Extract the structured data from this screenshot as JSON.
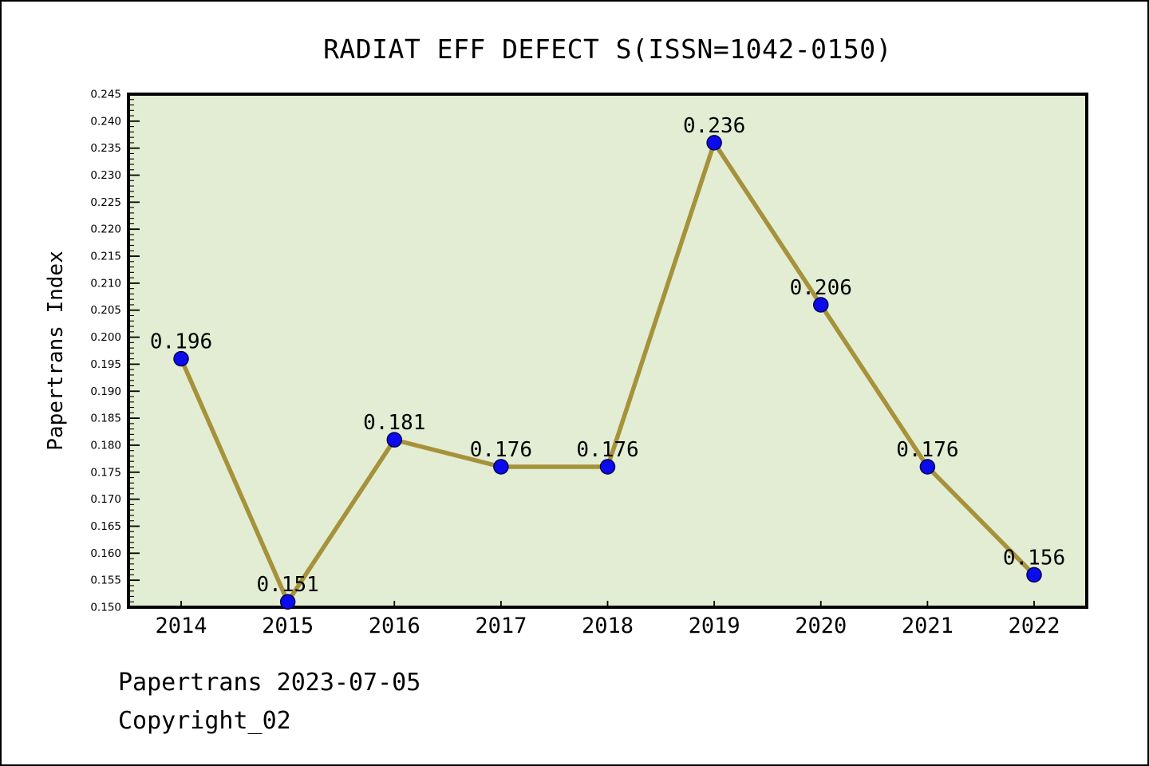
{
  "page": {
    "footer": {
      "line1": "Papertrans 2023-07-05",
      "line2": "Copyright_02"
    }
  },
  "chart_data": {
    "type": "line",
    "title": "RADIAT EFF DEFECT S(ISSN=1042-0150)",
    "xlabel": "",
    "ylabel": "Papertrans Index",
    "categories": [
      "2014",
      "2015",
      "2016",
      "2017",
      "2018",
      "2019",
      "2020",
      "2021",
      "2022"
    ],
    "series": [
      {
        "name": "Papertrans Index",
        "values": [
          0.196,
          0.151,
          0.181,
          0.176,
          0.176,
          0.236,
          0.206,
          0.176,
          0.156
        ]
      }
    ],
    "point_labels": [
      "0.196",
      "0.151",
      "0.181",
      "0.176",
      "0.176",
      "0.236",
      "0.206",
      "0.176",
      "0.156"
    ],
    "ylim": [
      0.15,
      0.245
    ],
    "y_tick_step": 0.005,
    "y_minor_tick_step": 0.001,
    "y_tick_labels": [
      "0.150",
      "0.155",
      "0.160",
      "0.165",
      "0.170",
      "0.175",
      "0.180",
      "0.185",
      "0.190",
      "0.195",
      "0.200",
      "0.205",
      "0.210",
      "0.215",
      "0.220",
      "0.225",
      "0.230",
      "0.235",
      "0.240",
      "0.245"
    ],
    "grid": false,
    "legend": "none",
    "colors": {
      "plot_bg": "#e2edd4",
      "line": "#a6923a",
      "marker_fill": "#0b0bee",
      "marker_edge": "#000050",
      "axis": "#000000",
      "text": "#000000"
    }
  }
}
